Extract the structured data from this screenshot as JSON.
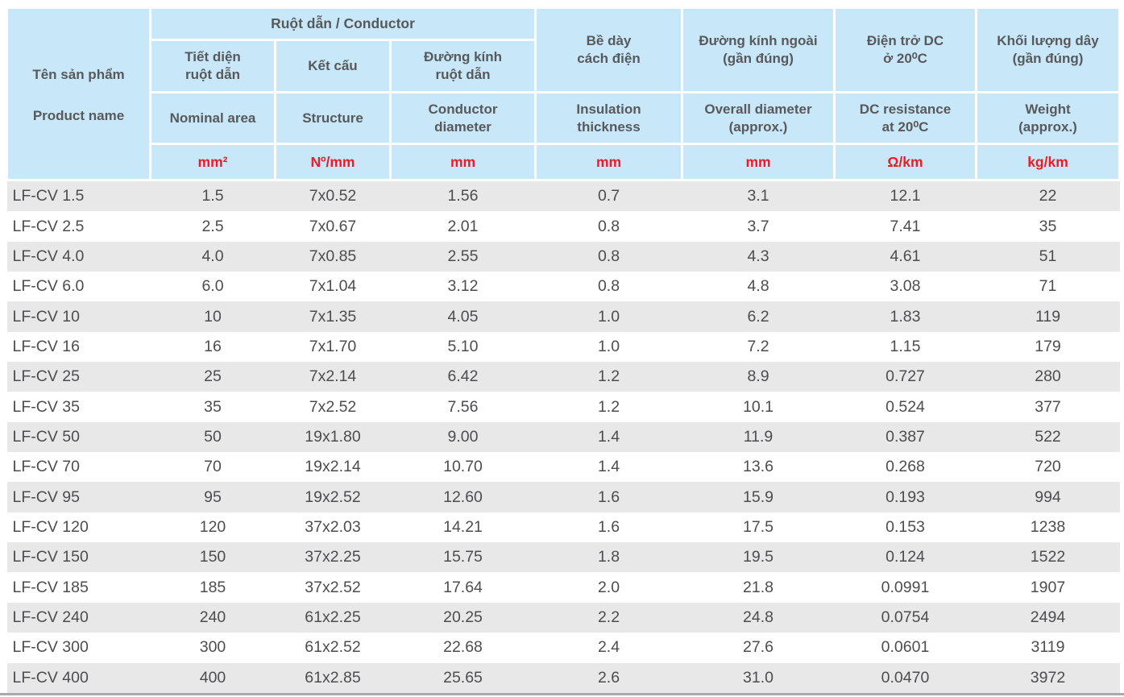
{
  "colors": {
    "header_bg": "#c8e7f8",
    "header_text": "#58595b",
    "unit_text": "#ed1c24",
    "row_alt_bg": "#e8e8e9",
    "row_text": "#4d4d4f",
    "bottom_rule": "#a7a9ac"
  },
  "table": {
    "header": {
      "product_name_vi": "Tên sản phẩm",
      "product_name_en": "Product name",
      "conductor_group": "Ruột dẫn / Conductor",
      "columns": [
        {
          "vi": "Tiết diện\nruột dẫn",
          "en": "Nominal area",
          "unit": "mm²"
        },
        {
          "vi": "Kết cấu",
          "en": "Structure",
          "unit": "Nº/mm"
        },
        {
          "vi": "Đường kính\nruột dẫn",
          "en": "Conductor\ndiameter",
          "unit": "mm"
        },
        {
          "vi": "Bề dày\ncách điện",
          "en": "Insulation\nthickness",
          "unit": "mm"
        },
        {
          "vi": "Đường kính ngoài\n(gần đúng)",
          "en": "Overall diameter\n(approx.)",
          "unit": "mm"
        },
        {
          "vi": "Điện trở DC\nở 20⁰C",
          "en": "DC resistance\nat 20⁰C",
          "unit": "Ω/km"
        },
        {
          "vi": "Khối lượng dây\n(gần đúng)",
          "en": "Weight\n(approx.)",
          "unit": "kg/km"
        }
      ]
    },
    "rows": [
      [
        "LF-CV 1.5",
        "1.5",
        "7x0.52",
        "1.56",
        "0.7",
        "3.1",
        "12.1",
        "22"
      ],
      [
        "LF-CV 2.5",
        "2.5",
        "7x0.67",
        "2.01",
        "0.8",
        "3.7",
        "7.41",
        "35"
      ],
      [
        "LF-CV 4.0",
        "4.0",
        "7x0.85",
        "2.55",
        "0.8",
        "4.3",
        "4.61",
        "51"
      ],
      [
        "LF-CV 6.0",
        "6.0",
        "7x1.04",
        "3.12",
        "0.8",
        "4.8",
        "3.08",
        "71"
      ],
      [
        "LF-CV 10",
        "10",
        "7x1.35",
        "4.05",
        "1.0",
        "6.2",
        "1.83",
        "119"
      ],
      [
        "LF-CV 16",
        "16",
        "7x1.70",
        "5.10",
        "1.0",
        "7.2",
        "1.15",
        "179"
      ],
      [
        "LF-CV 25",
        "25",
        "7x2.14",
        "6.42",
        "1.2",
        "8.9",
        "0.727",
        "280"
      ],
      [
        "LF-CV 35",
        "35",
        "7x2.52",
        "7.56",
        "1.2",
        "10.1",
        "0.524",
        "377"
      ],
      [
        "LF-CV 50",
        "50",
        "19x1.80",
        "9.00",
        "1.4",
        "11.9",
        "0.387",
        "522"
      ],
      [
        "LF-CV 70",
        "70",
        "19x2.14",
        "10.70",
        "1.4",
        "13.6",
        "0.268",
        "720"
      ],
      [
        "LF-CV 95",
        "95",
        "19x2.52",
        "12.60",
        "1.6",
        "15.9",
        "0.193",
        "994"
      ],
      [
        "LF-CV 120",
        "120",
        "37x2.03",
        "14.21",
        "1.6",
        "17.5",
        "0.153",
        "1238"
      ],
      [
        "LF-CV 150",
        "150",
        "37x2.25",
        "15.75",
        "1.8",
        "19.5",
        "0.124",
        "1522"
      ],
      [
        "LF-CV 185",
        "185",
        "37x2.52",
        "17.64",
        "2.0",
        "21.8",
        "0.0991",
        "1907"
      ],
      [
        "LF-CV 240",
        "240",
        "61x2.25",
        "20.25",
        "2.2",
        "24.8",
        "0.0754",
        "2494"
      ],
      [
        "LF-CV 300",
        "300",
        "61x2.52",
        "22.68",
        "2.4",
        "27.6",
        "0.0601",
        "3119"
      ],
      [
        "LF-CV 400",
        "400",
        "61x2.85",
        "25.65",
        "2.6",
        "31.0",
        "0.0470",
        "3972"
      ]
    ]
  }
}
